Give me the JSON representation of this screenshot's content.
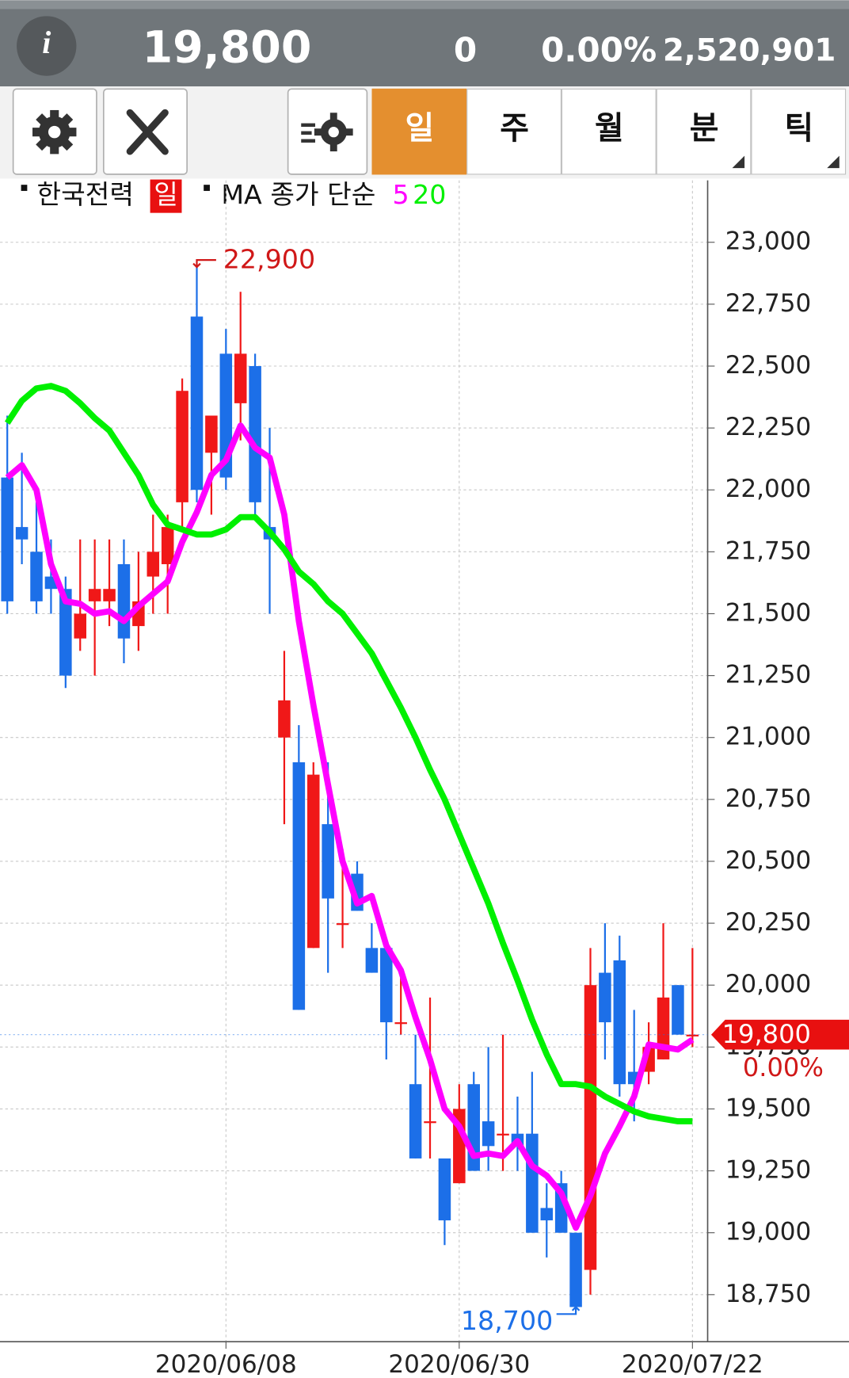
{
  "header": {
    "icon": "i",
    "price": "19,800",
    "change": "0",
    "change_rate": "0.00%",
    "volume": "2,520,901"
  },
  "toolbar": {
    "tabs": [
      "일",
      "주",
      "월",
      "분",
      "틱"
    ]
  },
  "chart_data": {
    "type": "candlestick",
    "symbol": "한국전력",
    "period": "일",
    "ma_label": "MA 종가 단순",
    "up_color": "#f01818",
    "down_color": "#1c6fe8",
    "categories": [
      null,
      null,
      null,
      null,
      null,
      null,
      null,
      null,
      null,
      null,
      null,
      null,
      null,
      null,
      null,
      "2020/06/08",
      null,
      null,
      null,
      null,
      null,
      null,
      null,
      null,
      null,
      null,
      null,
      null,
      null,
      null,
      null,
      "2020/06/30",
      null,
      null,
      null,
      null,
      null,
      null,
      null,
      null,
      null,
      null,
      null,
      null,
      null,
      null,
      null,
      "2020/07/22"
    ],
    "open": [
      22050,
      21850,
      21750,
      21650,
      21600,
      21400,
      21550,
      21550,
      21700,
      21450,
      21650,
      21700,
      21950,
      22700,
      22150,
      22550,
      22350,
      22500,
      21850,
      21000,
      20900,
      20150,
      20650,
      20250,
      20450,
      20150,
      20150,
      19850,
      19600,
      19450,
      19300,
      19200,
      19600,
      19450,
      19400,
      19400,
      19400,
      19100,
      19200,
      19000,
      18850,
      20050,
      20100,
      19650,
      19650,
      19700,
      20000,
      19800
    ],
    "high": [
      22300,
      22150,
      21950,
      21800,
      21650,
      21800,
      21800,
      21800,
      21800,
      21750,
      21900,
      21900,
      22450,
      22900,
      22300,
      22650,
      22800,
      22550,
      22250,
      21350,
      21050,
      20900,
      20900,
      20550,
      20500,
      20250,
      20150,
      20050,
      19800,
      19950,
      19300,
      19600,
      19650,
      19750,
      19800,
      19550,
      19650,
      19200,
      19250,
      19000,
      20150,
      20250,
      20200,
      19900,
      19850,
      20250,
      20000,
      20150
    ],
    "low": [
      21500,
      21700,
      21500,
      21500,
      21200,
      21350,
      21250,
      21450,
      21300,
      21350,
      21500,
      21500,
      21850,
      21950,
      21900,
      22000,
      22200,
      21900,
      21500,
      20650,
      19900,
      20150,
      20050,
      20150,
      20300,
      20050,
      19700,
      19800,
      19300,
      19300,
      18950,
      19200,
      19250,
      19250,
      19250,
      19250,
      19000,
      18900,
      19000,
      18700,
      18750,
      19700,
      19550,
      19450,
      19600,
      19700,
      19800,
      19750
    ],
    "close": [
      21550,
      21800,
      21550,
      21600,
      21250,
      21500,
      21600,
      21600,
      21400,
      21550,
      21750,
      21850,
      22400,
      22000,
      22300,
      22050,
      22550,
      21950,
      21800,
      21150,
      19900,
      20850,
      20350,
      20250,
      20300,
      20050,
      19850,
      19850,
      19300,
      19450,
      19050,
      19500,
      19250,
      19350,
      19400,
      19350,
      19000,
      19050,
      19000,
      18700,
      20000,
      19850,
      19600,
      19600,
      19750,
      19950,
      19800,
      19800
    ],
    "series": [
      {
        "name": "5",
        "color": "#ff00ff",
        "values": [
          22050,
          22100,
          22000,
          21700,
          21550,
          21540,
          21500,
          21510,
          21470,
          21530,
          21580,
          21630,
          21790,
          21910,
          22060,
          22120,
          22260,
          22170,
          22130,
          21900,
          21470,
          21130,
          20810,
          20500,
          20330,
          20360,
          20160,
          20060,
          19870,
          19700,
          19500,
          19430,
          19310,
          19320,
          19310,
          19370,
          19270,
          19230,
          19160,
          19020,
          19150,
          19320,
          19430,
          19550,
          19760,
          19750,
          19740,
          19780
        ]
      },
      {
        "name": "20",
        "color": "#00f000",
        "values": [
          22270,
          22360,
          22410,
          22420,
          22400,
          22350,
          22290,
          22240,
          22150,
          22060,
          21940,
          21860,
          21840,
          21820,
          21820,
          21840,
          21890,
          21890,
          21830,
          21760,
          21670,
          21620,
          21550,
          21500,
          21420,
          21340,
          21230,
          21120,
          21000,
          20870,
          20750,
          20610,
          20470,
          20330,
          20170,
          20020,
          19860,
          19720,
          19600,
          19600,
          19590,
          19550,
          19520,
          19490,
          19470,
          19460,
          19450,
          19450
        ]
      }
    ],
    "ylim": [
      18560,
      23250
    ],
    "yticks": [
      {
        "value": 18750,
        "label": "18,750"
      },
      {
        "value": 19000,
        "label": "19,000"
      },
      {
        "value": 19250,
        "label": "19,250"
      },
      {
        "value": 19500,
        "label": "19,500"
      },
      {
        "value": 19750,
        "label": "19,750"
      },
      {
        "value": 20000,
        "label": "20,000"
      },
      {
        "value": 20250,
        "label": "20,250"
      },
      {
        "value": 20500,
        "label": "20,500"
      },
      {
        "value": 20750,
        "label": "20,750"
      },
      {
        "value": 21000,
        "label": "21,000"
      },
      {
        "value": 21250,
        "label": "21,250"
      },
      {
        "value": 21500,
        "label": "21,500"
      },
      {
        "value": 21750,
        "label": "21,750"
      },
      {
        "value": 22000,
        "label": "22,000"
      },
      {
        "value": 22250,
        "label": "22,250"
      },
      {
        "value": 22500,
        "label": "22,500"
      },
      {
        "value": 22750,
        "label": "22,750"
      },
      {
        "value": 23000,
        "label": "23,000"
      }
    ],
    "grid": true,
    "high_mark": {
      "value": 22900,
      "label": "22,900",
      "index": 13
    },
    "low_mark": {
      "value": 18700,
      "label": "18,700",
      "index": 39
    },
    "price_tag": {
      "value": 19800,
      "label": "19,800",
      "change": "0.00%"
    }
  }
}
